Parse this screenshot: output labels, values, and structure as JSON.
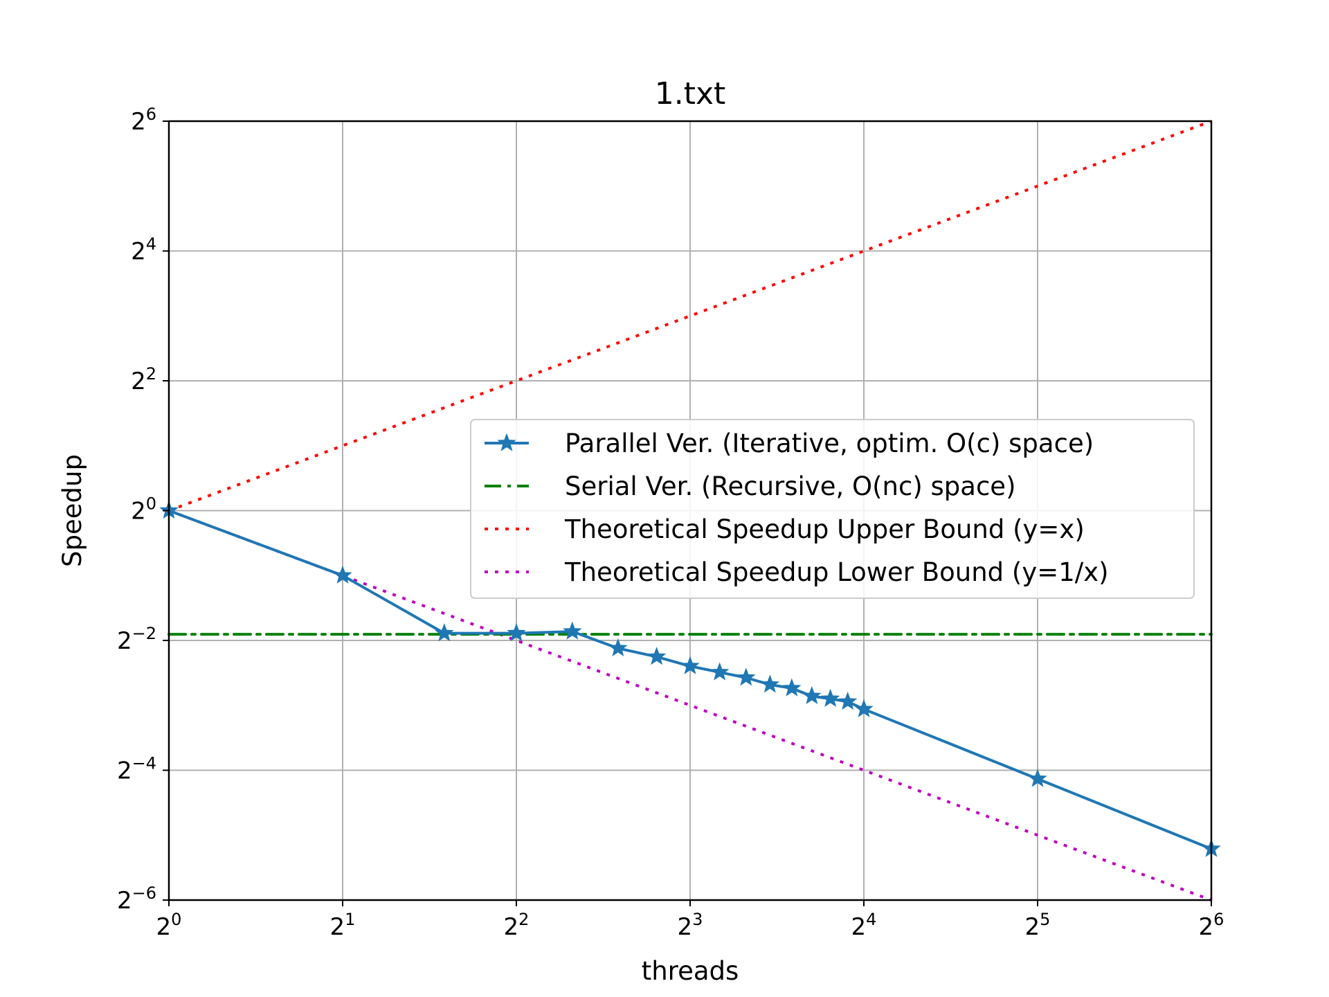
{
  "chart_data": {
    "type": "line",
    "title": "1.txt",
    "xlabel": "threads",
    "ylabel": "Speedup",
    "xscale": "log2",
    "yscale": "log2",
    "xlim": [
      1,
      64
    ],
    "ylim": [
      0.015625,
      64
    ],
    "xticks": [
      {
        "value": 1,
        "base": "2",
        "exp": "0"
      },
      {
        "value": 2,
        "base": "2",
        "exp": "1"
      },
      {
        "value": 4,
        "base": "2",
        "exp": "2"
      },
      {
        "value": 8,
        "base": "2",
        "exp": "3"
      },
      {
        "value": 16,
        "base": "2",
        "exp": "4"
      },
      {
        "value": 32,
        "base": "2",
        "exp": "5"
      },
      {
        "value": 64,
        "base": "2",
        "exp": "6"
      }
    ],
    "yticks": [
      {
        "value": 0.015625,
        "base": "2",
        "exp": "−6"
      },
      {
        "value": 0.0625,
        "base": "2",
        "exp": "−4"
      },
      {
        "value": 0.25,
        "base": "2",
        "exp": "−2"
      },
      {
        "value": 1,
        "base": "2",
        "exp": "0"
      },
      {
        "value": 4,
        "base": "2",
        "exp": "2"
      },
      {
        "value": 16,
        "base": "2",
        "exp": "4"
      },
      {
        "value": 64,
        "base": "2",
        "exp": "6"
      }
    ],
    "grid": true,
    "legend_position": "center-right",
    "series": [
      {
        "name": "Parallel Ver. (Iterative, optim. O(c) space)",
        "style": "solid-star",
        "color": "#1f77b4",
        "x": [
          1,
          2,
          3,
          4,
          5,
          6,
          7,
          8,
          9,
          10,
          11,
          12,
          13,
          14,
          15,
          16,
          32,
          64
        ],
        "y": [
          1,
          0.5,
          0.27,
          0.27,
          0.275,
          0.23,
          0.21,
          0.19,
          0.178,
          0.168,
          0.156,
          0.15,
          0.138,
          0.134,
          0.13,
          0.12,
          0.057,
          0.027
        ]
      },
      {
        "name": "Serial Ver. (Recursive, O(nc) space)",
        "style": "dashdot",
        "color": "#008000",
        "x": [
          1,
          64
        ],
        "y": [
          0.267,
          0.267
        ]
      },
      {
        "name": "Theoretical Speedup Upper Bound (y=x)",
        "style": "dotted",
        "color": "#ff0000",
        "x": [
          1,
          64
        ],
        "y": [
          1,
          64
        ]
      },
      {
        "name": "Theoretical Speedup Lower Bound (y=1/x)",
        "style": "dotted",
        "color": "#bf00bf",
        "x": [
          1,
          64
        ],
        "y": [
          1,
          0.015625
        ]
      }
    ]
  }
}
